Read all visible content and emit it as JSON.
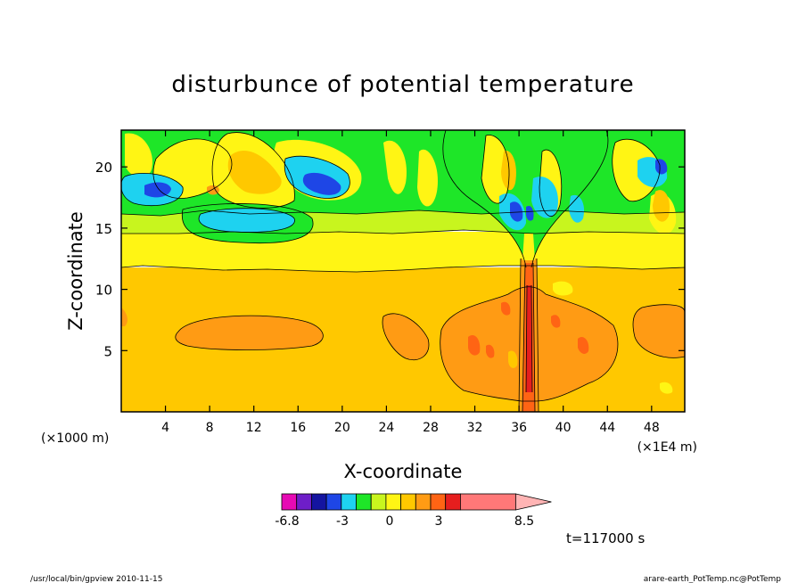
{
  "chart_data": {
    "type": "heatmap",
    "title": "disturbunce of potential temperature",
    "xlabel": "X-coordinate",
    "ylabel": "Z-coordinate",
    "x_scale_note": "(×1000 m)",
    "x_unit_note": "(×1E4 m)",
    "xlim": [
      0,
      51
    ],
    "ylim": [
      0,
      23
    ],
    "x_ticks": [
      4,
      8,
      12,
      16,
      20,
      24,
      28,
      32,
      36,
      40,
      44,
      48
    ],
    "y_ticks": [
      5,
      10,
      15,
      20
    ],
    "colorbar": {
      "colors": [
        "#e60ab4",
        "#6e1ec8",
        "#1414a0",
        "#1e46e6",
        "#1ed2f0",
        "#1ee628",
        "#c8f51e",
        "#fff514",
        "#ffc800",
        "#ff9b14",
        "#ff6414",
        "#e61e1e",
        "#ff7878"
      ],
      "tick_labels": [
        "-6.8",
        "-3",
        "0",
        "3",
        "8.5"
      ],
      "tick_values": [
        -6.8,
        -3,
        0,
        3,
        8.5
      ],
      "extend": "max",
      "overflow_color": "#ffb4b4"
    },
    "time_label": "t=117000 s",
    "footer_left": "/usr/local/bin/gpview   2010-11-15",
    "footer_right": "arare-earth_PotTemp.nc@PotTemp"
  }
}
